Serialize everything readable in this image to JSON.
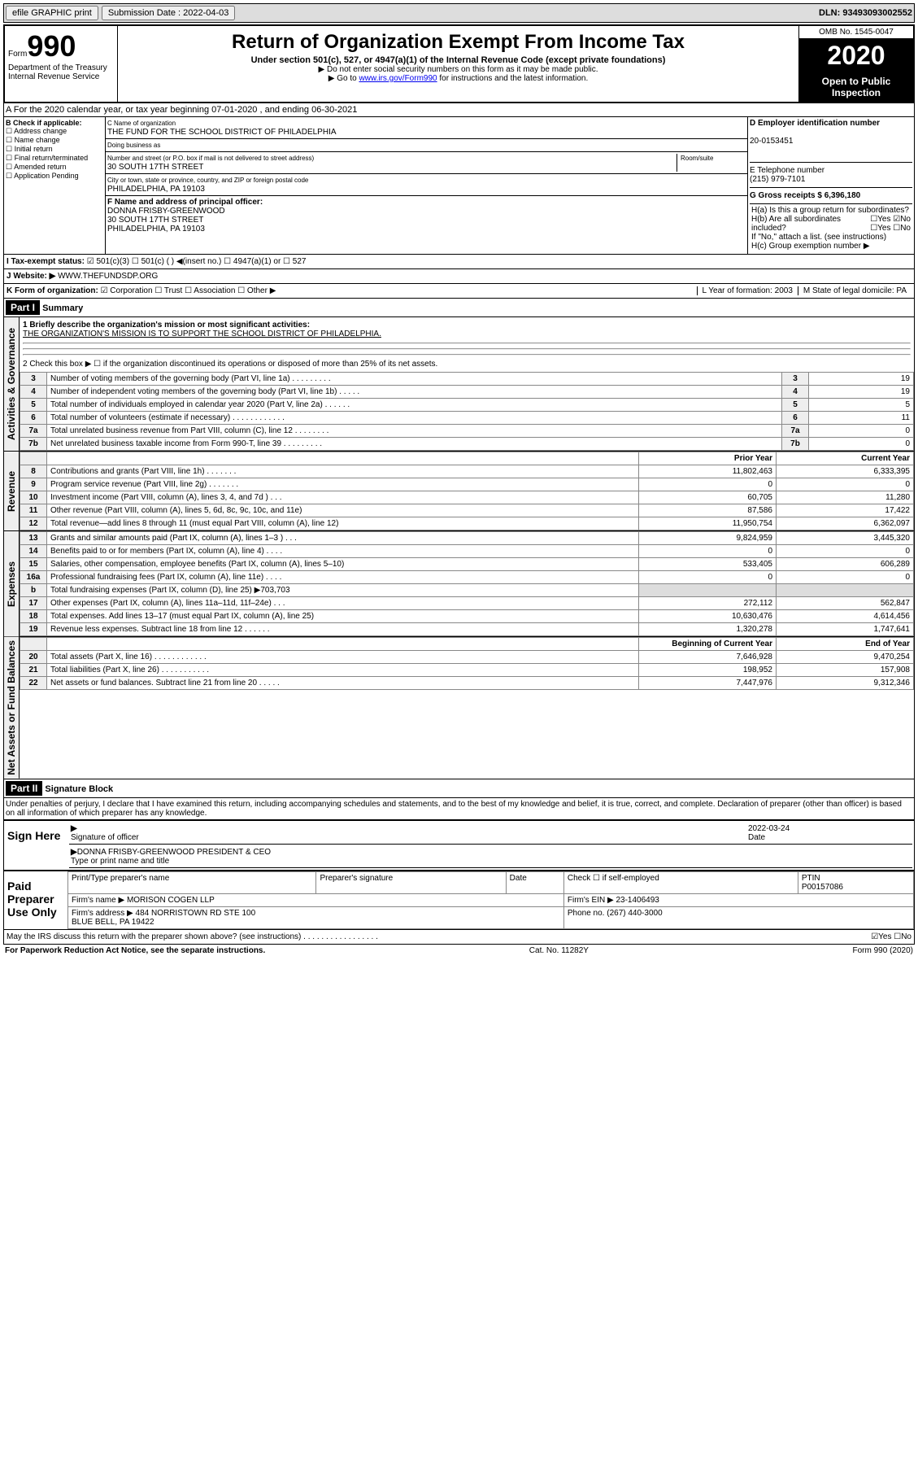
{
  "top": {
    "efile": "efile GRAPHIC print",
    "subdate_lbl": "Submission Date : 2022-04-03",
    "dln": "DLN: 93493093002552"
  },
  "header": {
    "form": "Form",
    "num": "990",
    "dept": "Department of the Treasury Internal Revenue Service",
    "title": "Return of Organization Exempt From Income Tax",
    "sub": "Under section 501(c), 527, or 4947(a)(1) of the Internal Revenue Code (except private foundations)",
    "note1": "▶ Do not enter social security numbers on this form as it may be made public.",
    "note2_a": "▶ Go to ",
    "note2_link": "www.irs.gov/Form990",
    "note2_b": " for instructions and the latest information.",
    "omb": "OMB No. 1545-0047",
    "year": "2020",
    "open": "Open to Public Inspection"
  },
  "A": {
    "text": "A For the 2020 calendar year, or tax year beginning 07-01-2020   , and ending 06-30-2021"
  },
  "B": {
    "hdr": "B Check if applicable:",
    "items": [
      "☐ Address change",
      "☐ Name change",
      "☐ Initial return",
      "☐ Final return/terminated",
      "☐ Amended return",
      "☐ Application Pending"
    ]
  },
  "C": {
    "name_lbl": "C Name of organization",
    "name": "THE FUND FOR THE SCHOOL DISTRICT OF PHILADELPHIA",
    "dba_lbl": "Doing business as",
    "addr_lbl": "Number and street (or P.O. box if mail is not delivered to street address)",
    "room_lbl": "Room/suite",
    "addr": "30 SOUTH 17TH STREET",
    "city_lbl": "City or town, state or province, country, and ZIP or foreign postal code",
    "city": "PHILADELPHIA, PA  19103"
  },
  "D": {
    "lbl": "D Employer identification number",
    "val": "20-0153451"
  },
  "E": {
    "lbl": "E Telephone number",
    "val": "(215) 979-7101"
  },
  "G": {
    "lbl": "G Gross receipts $ 6,396,180"
  },
  "F": {
    "lbl": "F Name and address of principal officer:",
    "val": "DONNA FRISBY-GREENWOOD\n30 SOUTH 17TH STREET\nPHILADELPHIA, PA  19103"
  },
  "H": {
    "a": "H(a)  Is this a group return for subordinates?",
    "a_ans": "☐Yes ☑No",
    "b": "H(b)  Are all subordinates included?",
    "b_ans": "☐Yes ☐No",
    "b_note": "If \"No,\" attach a list. (see instructions)",
    "c": "H(c)  Group exemption number ▶"
  },
  "I": {
    "lbl": "I Tax-exempt status:",
    "val": "☑ 501(c)(3)   ☐ 501(c) (  ) ◀(insert no.)   ☐ 4947(a)(1) or  ☐ 527"
  },
  "J": {
    "lbl": "J Website: ▶",
    "val": "WWW.THEFUNDSDP.ORG"
  },
  "K": {
    "lbl": "K Form of organization:",
    "val": "☑ Corporation  ☐ Trust  ☐ Association  ☐ Other ▶"
  },
  "L": {
    "lbl": "L Year of formation: 2003"
  },
  "M": {
    "lbl": "M State of legal domicile: PA"
  },
  "part1": {
    "hdr": "Part I",
    "title": "Summary",
    "l1_lbl": "1  Briefly describe the organization's mission or most significant activities:",
    "l1_val": "THE ORGANIZATION'S MISSION IS TO SUPPORT THE SCHOOL DISTRICT OF PHILADELPHIA.",
    "l2": "2  Check this box ▶ ☐  if the organization discontinued its operations or disposed of more than 25% of its net assets.",
    "gov": [
      {
        "n": "3",
        "d": "Number of voting members of the governing body (Part VI, line 1a)  .  .  .  .  .  .  .  .  .",
        "v": "19"
      },
      {
        "n": "4",
        "d": "Number of independent voting members of the governing body (Part VI, line 1b)  .  .  .  .  .",
        "v": "19"
      },
      {
        "n": "5",
        "d": "Total number of individuals employed in calendar year 2020 (Part V, line 2a)  .  .  .  .  .  .",
        "v": "5"
      },
      {
        "n": "6",
        "d": "Total number of volunteers (estimate if necessary)  .  .  .  .  .  .  .  .  .  .  .  .",
        "v": "11"
      },
      {
        "n": "7a",
        "d": "Total unrelated business revenue from Part VIII, column (C), line 12  .  .  .  .  .  .  .  .",
        "v": "0"
      },
      {
        "n": "7b",
        "d": "Net unrelated business taxable income from Form 990-T, line 39  .  .  .  .  .  .  .  .  .",
        "v": "0"
      }
    ],
    "col_prior": "Prior Year",
    "col_curr": "Current Year",
    "rev": [
      {
        "n": "8",
        "d": "Contributions and grants (Part VIII, line 1h)  .  .  .  .  .  .  .",
        "p": "11,802,463",
        "c": "6,333,395"
      },
      {
        "n": "9",
        "d": "Program service revenue (Part VIII, line 2g)  .  .  .  .  .  .  .",
        "p": "0",
        "c": "0"
      },
      {
        "n": "10",
        "d": "Investment income (Part VIII, column (A), lines 3, 4, and 7d )  .  .  .",
        "p": "60,705",
        "c": "11,280"
      },
      {
        "n": "11",
        "d": "Other revenue (Part VIII, column (A), lines 5, 6d, 8c, 9c, 10c, and 11e)",
        "p": "87,586",
        "c": "17,422"
      },
      {
        "n": "12",
        "d": "Total revenue—add lines 8 through 11 (must equal Part VIII, column (A), line 12)",
        "p": "11,950,754",
        "c": "6,362,097"
      }
    ],
    "exp": [
      {
        "n": "13",
        "d": "Grants and similar amounts paid (Part IX, column (A), lines 1–3 )  .  .  .",
        "p": "9,824,959",
        "c": "3,445,320"
      },
      {
        "n": "14",
        "d": "Benefits paid to or for members (Part IX, column (A), line 4)  .  .  .  .",
        "p": "0",
        "c": "0"
      },
      {
        "n": "15",
        "d": "Salaries, other compensation, employee benefits (Part IX, column (A), lines 5–10)",
        "p": "533,405",
        "c": "606,289"
      },
      {
        "n": "16a",
        "d": "Professional fundraising fees (Part IX, column (A), line 11e)  .  .  .  .",
        "p": "0",
        "c": "0"
      },
      {
        "n": "b",
        "d": "Total fundraising expenses (Part IX, column (D), line 25) ▶703,703",
        "p": "",
        "c": "",
        "gray": true
      },
      {
        "n": "17",
        "d": "Other expenses (Part IX, column (A), lines 11a–11d, 11f–24e)  .  .  .",
        "p": "272,112",
        "c": "562,847"
      },
      {
        "n": "18",
        "d": "Total expenses. Add lines 13–17 (must equal Part IX, column (A), line 25)",
        "p": "10,630,476",
        "c": "4,614,456"
      },
      {
        "n": "19",
        "d": "Revenue less expenses. Subtract line 18 from line 12  .  .  .  .  .  .",
        "p": "1,320,278",
        "c": "1,747,641"
      }
    ],
    "col_beg": "Beginning of Current Year",
    "col_end": "End of Year",
    "net": [
      {
        "n": "20",
        "d": "Total assets (Part X, line 16)  .  .  .  .  .  .  .  .  .  .  .  .",
        "p": "7,646,928",
        "c": "9,470,254"
      },
      {
        "n": "21",
        "d": "Total liabilities (Part X, line 26)  .  .  .  .  .  .  .  .  .  .  .",
        "p": "198,952",
        "c": "157,908"
      },
      {
        "n": "22",
        "d": "Net assets or fund balances. Subtract line 21 from line 20  .  .  .  .  .",
        "p": "7,447,976",
        "c": "9,312,346"
      }
    ]
  },
  "part2": {
    "hdr": "Part II",
    "title": "Signature Block",
    "perjury": "Under penalties of perjury, I declare that I have examined this return, including accompanying schedules and statements, and to the best of my knowledge and belief, it is true, correct, and complete. Declaration of preparer (other than officer) is based on all information of which preparer has any knowledge.",
    "sign_here": "Sign Here",
    "sig_officer": "Signature of officer",
    "date": "2022-03-24",
    "date_lbl": "Date",
    "name": "DONNA FRISBY-GREENWOOD  PRESIDENT & CEO",
    "name_lbl": "Type or print name and title",
    "paid": "Paid Preparer Use Only",
    "prep_name_lbl": "Print/Type preparer's name",
    "prep_sig_lbl": "Preparer's signature",
    "chk_self": "Check ☐ if self-employed",
    "ptin_lbl": "PTIN",
    "ptin": "P00157086",
    "firm_name_lbl": "Firm's name   ▶",
    "firm_name": "MORISON COGEN LLP",
    "firm_ein_lbl": "Firm's EIN ▶",
    "firm_ein": "23-1406493",
    "firm_addr_lbl": "Firm's address ▶",
    "firm_addr": "484 NORRISTOWN RD STE 100\nBLUE BELL, PA  19422",
    "phone_lbl": "Phone no.",
    "phone": "(267) 440-3000",
    "discuss": "May the IRS discuss this return with the preparer shown above? (see instructions)  .  .  .  .  .  .  .  .  .  .  .  .  .  .  .  .  .",
    "discuss_ans": "☑Yes ☐No"
  },
  "footer": {
    "l": "For Paperwork Reduction Act Notice, see the separate instructions.",
    "m": "Cat. No. 11282Y",
    "r": "Form 990 (2020)"
  },
  "vlabels": {
    "gov": "Activities & Governance",
    "rev": "Revenue",
    "exp": "Expenses",
    "net": "Net Assets or Fund Balances"
  }
}
